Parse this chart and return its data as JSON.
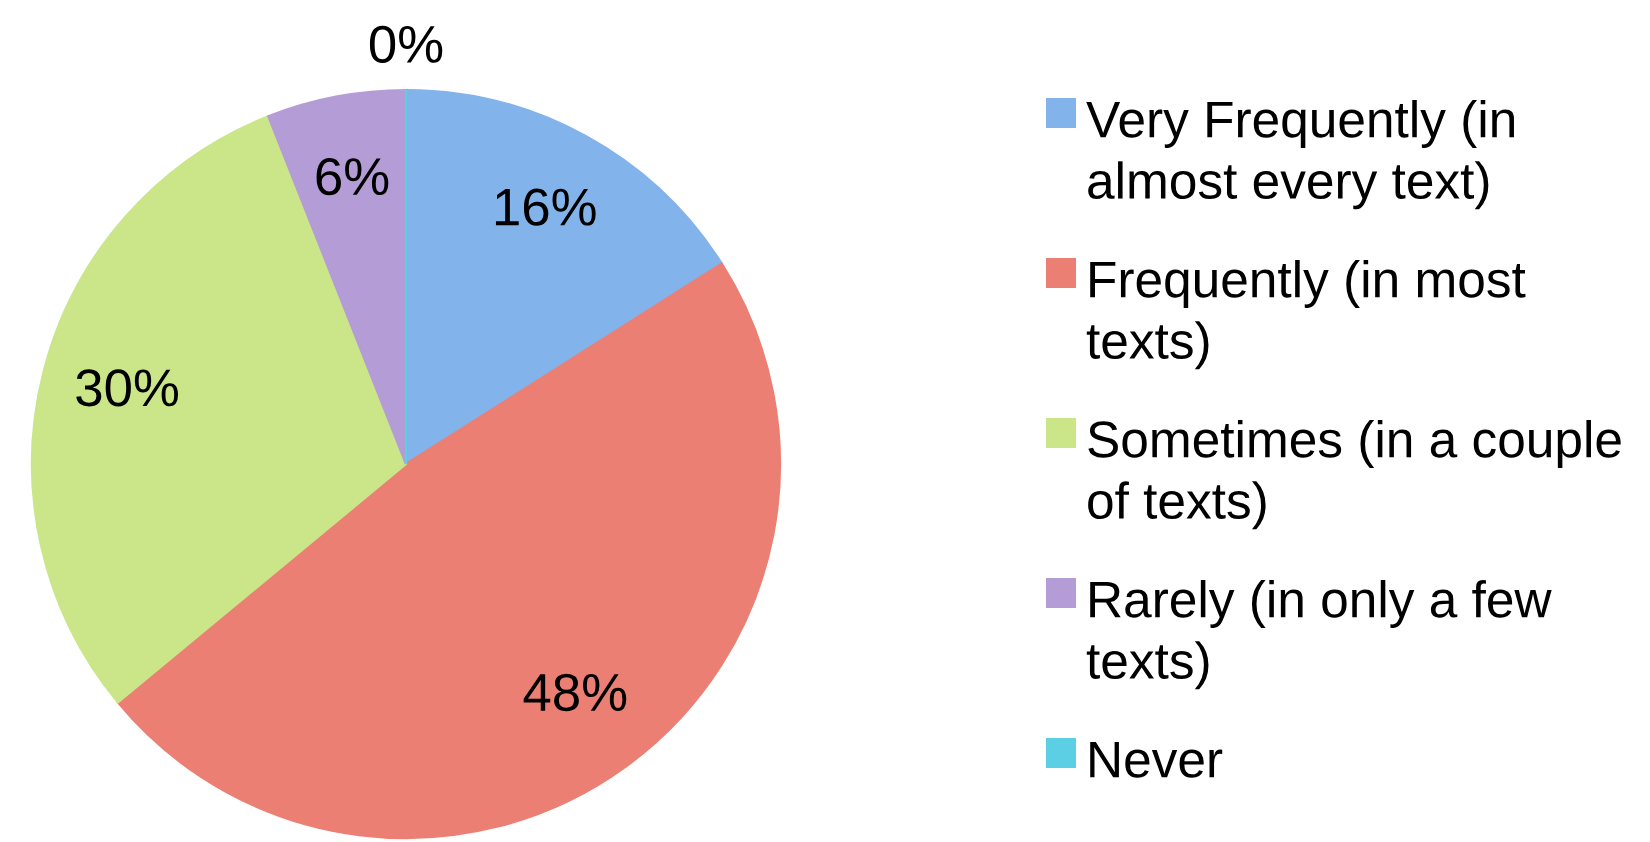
{
  "chart_data": {
    "type": "pie",
    "categories": [
      "Very Frequently (in almost every text)",
      "Frequently (in most texts)",
      "Sometimes (in a couple of texts)",
      "Rarely (in only a few texts)",
      "Never"
    ],
    "values": [
      16,
      48,
      30,
      6,
      0
    ],
    "value_labels": [
      "16%",
      "48%",
      "30%",
      "6%",
      "0%"
    ],
    "colors": [
      "#82b3ea",
      "#ec7f74",
      "#cbe589",
      "#b49cd6",
      "#5dcfe5"
    ],
    "legend": "right"
  }
}
